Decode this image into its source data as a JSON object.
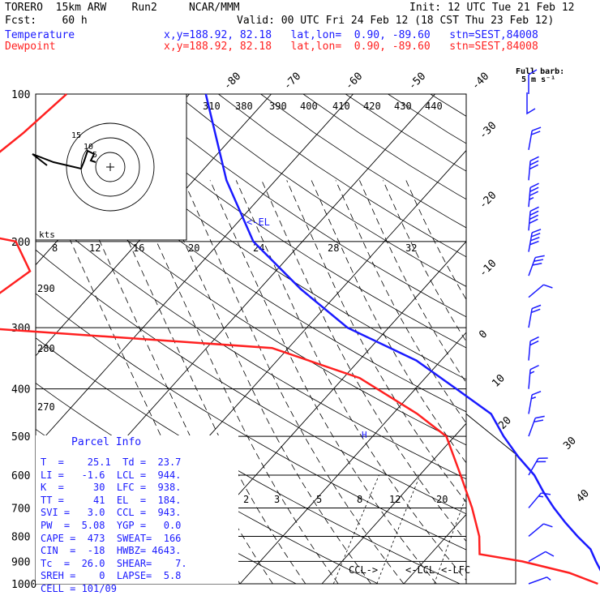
{
  "header": {
    "model": "TORERO  15km ARW    Run2     NCAR/MMM",
    "init": "Init: 12 UTC Tue 21 Feb 12",
    "fcst": "Fcst:    60 h",
    "valid": "Valid: 00 UTC Fri 24 Feb 12 (18 CST Thu 23 Feb 12)",
    "temp_label": "Temperature",
    "dew_label": "Dewpoint",
    "temp_loc": "x,y=188.92, 82.18   lat,lon=  0.90, -89.60   stn=SEST,84008",
    "dew_loc": "x,y=188.92, 82.18   lat,lon=  0.90, -89.60   stn=SEST,84008",
    "full_barb": "Full barb:",
    "full_barb_unit": "5 m s⁻¹"
  },
  "colors": {
    "temperature": "#1a1aff",
    "dewpoint": "#ff2020",
    "parcel_info": "#1a1aff",
    "barbs": "#1a1aff",
    "grid": "#000000"
  },
  "chart_data": {
    "type": "line",
    "chart_kind": "skew-T log-P sounding",
    "y_axis_pressure_hPa": [
      100,
      200,
      300,
      400,
      500,
      600,
      700,
      800,
      900,
      1000
    ],
    "y_scale": "log",
    "top_temperature_ticks": [
      "-80",
      "-70",
      "-60",
      "-50",
      "-40"
    ],
    "right_temperature_ticks": [
      "-30",
      "-20",
      "-10",
      "0",
      "10",
      "20",
      "30",
      "40"
    ],
    "theta_labels": [
      "310",
      "380",
      "390",
      "400",
      "410",
      "420",
      "430",
      "440"
    ],
    "mixing_ratio_labels": [
      "2",
      "3",
      "5",
      "8",
      "12",
      "20"
    ],
    "lower_theta_labels": [
      "290",
      "280",
      "270"
    ],
    "hodograph": {
      "unit": "kts",
      "speed_ticks": [
        "8",
        "12",
        "16",
        "20",
        "24",
        "28",
        "32"
      ],
      "ring_labels": [
        "15",
        "10",
        "5"
      ]
    },
    "annotations": {
      "el": "<-EL",
      "lcl": "<-LCL",
      "lfc": "<-LFC",
      "ccl": "CCL->",
      "parcel_mark": "H"
    },
    "series": [
      {
        "name": "Temperature",
        "points": [
          [
            100,
            -78
          ],
          [
            150,
            -66
          ],
          [
            200,
            -56
          ],
          [
            250,
            -45
          ],
          [
            300,
            -35
          ],
          [
            350,
            -23
          ],
          [
            400,
            -15
          ],
          [
            450,
            -8
          ],
          [
            500,
            -4
          ],
          [
            550,
            0
          ],
          [
            600,
            4
          ],
          [
            650,
            7
          ],
          [
            700,
            10
          ],
          [
            750,
            13
          ],
          [
            800,
            16
          ],
          [
            850,
            19
          ],
          [
            900,
            21
          ],
          [
            950,
            23
          ],
          [
            975,
            24
          ],
          [
            1000,
            25.1
          ]
        ]
      },
      {
        "name": "Dewpoint",
        "points": [
          [
            100,
            -95
          ],
          [
            120,
            -96
          ],
          [
            150,
            -98
          ],
          [
            170,
            -98
          ],
          [
            190,
            -93
          ],
          [
            200,
            -85
          ],
          [
            230,
            -80
          ],
          [
            270,
            -82
          ],
          [
            300,
            -80
          ],
          [
            330,
            -42
          ],
          [
            380,
            -28
          ],
          [
            450,
            -17
          ],
          [
            500,
            -11
          ],
          [
            600,
            -5
          ],
          [
            700,
            0
          ],
          [
            800,
            4
          ],
          [
            870,
            6
          ],
          [
            900,
            12
          ],
          [
            950,
            19
          ],
          [
            1000,
            23.7
          ]
        ]
      }
    ],
    "wind_barbs": [
      {
        "p": 100,
        "speed_ms": 5,
        "dir": 90
      },
      {
        "p": 130,
        "speed_ms": 10,
        "dir": 100
      },
      {
        "p": 150,
        "speed_ms": 15,
        "dir": 95
      },
      {
        "p": 170,
        "speed_ms": 18,
        "dir": 95
      },
      {
        "p": 190,
        "speed_ms": 20,
        "dir": 95
      },
      {
        "p": 210,
        "speed_ms": 20,
        "dir": 100
      },
      {
        "p": 235,
        "speed_ms": 15,
        "dir": 110
      },
      {
        "p": 260,
        "speed_ms": 5,
        "dir": 140
      },
      {
        "p": 300,
        "speed_ms": 10,
        "dir": 100
      },
      {
        "p": 350,
        "speed_ms": 10,
        "dir": 95
      },
      {
        "p": 400,
        "speed_ms": 8,
        "dir": 95
      },
      {
        "p": 450,
        "speed_ms": 8,
        "dir": 100
      },
      {
        "p": 500,
        "speed_ms": 10,
        "dir": 110
      },
      {
        "p": 600,
        "speed_ms": 10,
        "dir": 120
      },
      {
        "p": 700,
        "speed_ms": 8,
        "dir": 130
      },
      {
        "p": 800,
        "speed_ms": 5,
        "dir": 140
      },
      {
        "p": 900,
        "speed_ms": 5,
        "dir": 150
      },
      {
        "p": 1000,
        "speed_ms": 3,
        "dir": 160
      }
    ]
  },
  "parcel_info": {
    "title": "Parcel Info",
    "rows": [
      "T  =    25.1  Td =  23.7",
      "LI =   -1.6  LCL =  944.",
      "K  =     30  LFC =  938.",
      "TT =     41  EL  =  184.",
      "SVI =   3.0  CCL =  943.",
      "PW  =  5.08  YGP =   0.0",
      "CAPE =  473  SWEAT=  166",
      "CIN  =  -18  HWBZ= 4643.",
      "Tc  =  26.0  SHEAR=    7.",
      "SREH =    0  LAPSE=  5.8",
      "CELL = 101/09"
    ]
  }
}
